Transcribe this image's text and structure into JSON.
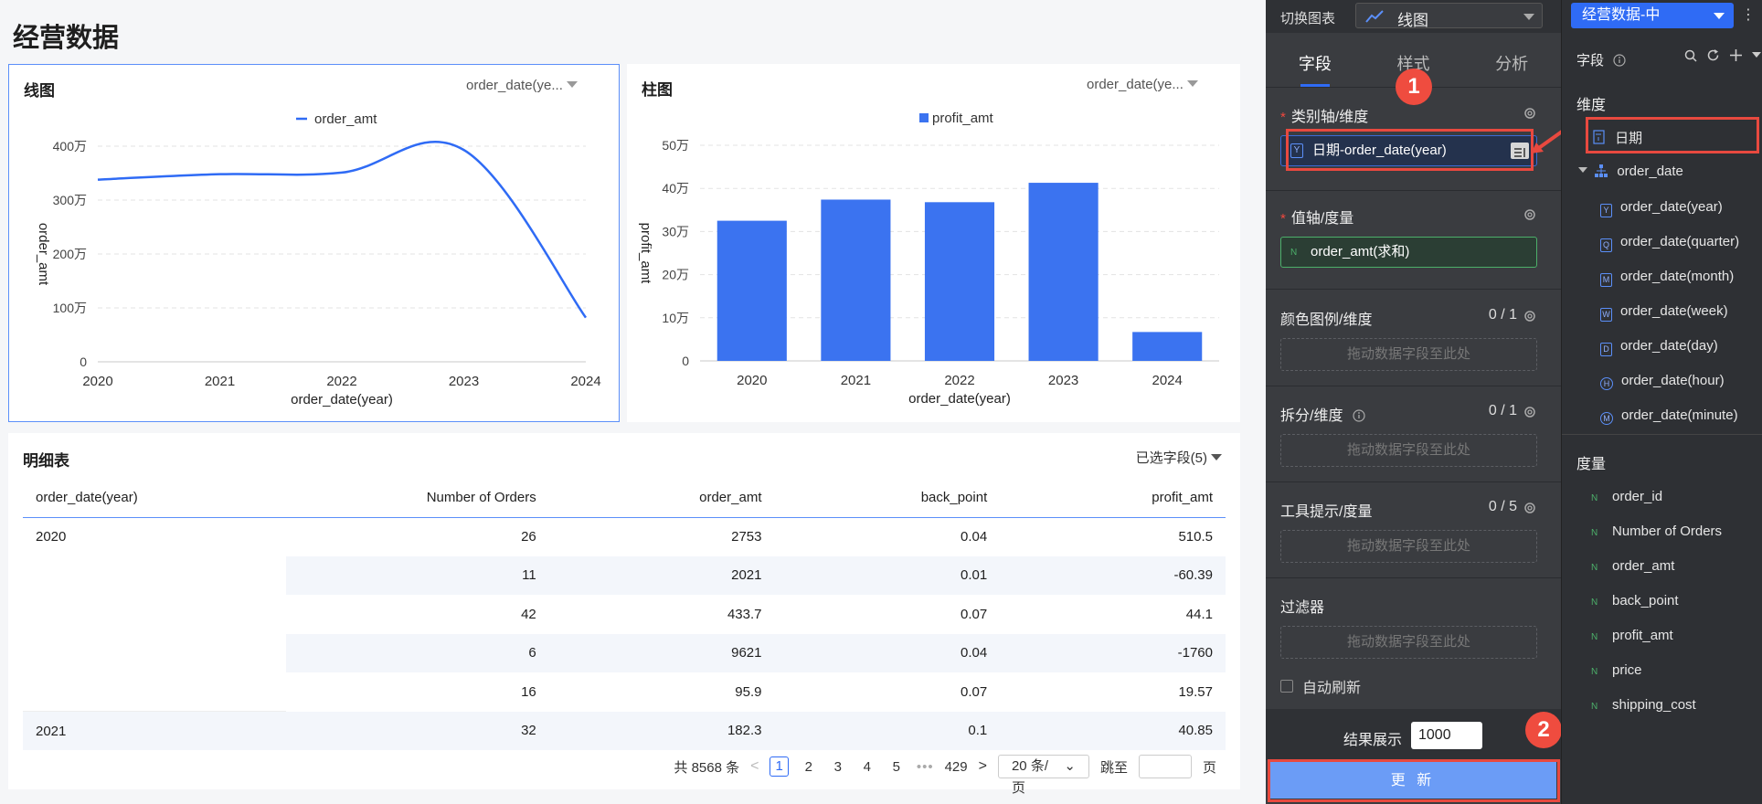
{
  "page": {
    "title": "经营数据"
  },
  "line_card": {
    "title": "线图",
    "field": "order_date(ye...",
    "legend": "order_amt",
    "color": "#2f6bf5"
  },
  "bar_card": {
    "title": "柱图",
    "field": "order_date(ye...",
    "legend": "profit_amt",
    "color": "#3b73f0"
  },
  "chart_data": [
    {
      "type": "line",
      "title": "线图",
      "x": [
        "2020",
        "2021",
        "2022",
        "2023",
        "2024"
      ],
      "series": [
        {
          "name": "order_amt",
          "values": [
            3380000,
            3480000,
            3510000,
            3930000,
            820000
          ]
        }
      ],
      "xlabel": "order_date(year)",
      "ylabel": "order_amt",
      "ylim": [
        0,
        4000000
      ],
      "yticks": [
        0,
        1000000,
        2000000,
        3000000,
        4000000
      ],
      "ytick_labels": [
        "0",
        "100万",
        "200万",
        "300万",
        "400万"
      ],
      "legend": "top-center",
      "grid": true
    },
    {
      "type": "bar",
      "title": "柱图",
      "categories": [
        "2020",
        "2021",
        "2022",
        "2023",
        "2024"
      ],
      "series": [
        {
          "name": "profit_amt",
          "values": [
            325000,
            374000,
            368000,
            413000,
            67000
          ]
        }
      ],
      "xlabel": "order_date(year)",
      "ylabel": "profit_amt",
      "ylim": [
        0,
        500000
      ],
      "yticks": [
        0,
        100000,
        200000,
        300000,
        400000,
        500000
      ],
      "ytick_labels": [
        "0",
        "10万",
        "20万",
        "30万",
        "40万",
        "50万"
      ],
      "legend": "top-center",
      "grid": true
    }
  ],
  "table": {
    "title": "明细表",
    "selected_fields": "已选字段(5)",
    "columns": [
      "order_date(year)",
      "Number of Orders",
      "order_amt",
      "back_point",
      "profit_amt"
    ],
    "rows": [
      [
        "2020",
        "26",
        "2753",
        "0.04",
        "510.5"
      ],
      [
        "",
        "11",
        "2021",
        "0.01",
        "-60.39"
      ],
      [
        "",
        "42",
        "433.7",
        "0.07",
        "44.1"
      ],
      [
        "",
        "6",
        "9621",
        "0.04",
        "-1760"
      ],
      [
        "",
        "16",
        "95.9",
        "0.07",
        "19.57"
      ],
      [
        "2021",
        "32",
        "182.3",
        "0.1",
        "40.85"
      ]
    ],
    "pagination": {
      "total": "共 8568 条",
      "prev": "<",
      "pages": [
        "1",
        "2",
        "3",
        "4",
        "5"
      ],
      "dots": "•••",
      "last": "429",
      "next": ">",
      "page_size": "20 条/页",
      "jump_label": "跳至",
      "page_unit": "页"
    }
  },
  "config": {
    "switch_label": "切换图表",
    "chart_type": "线图",
    "tabs": [
      "字段",
      "样式",
      "分析"
    ],
    "active_tab": "字段",
    "category_axis": {
      "title": "类别轴/维度",
      "required": "*",
      "field_badge": "Y",
      "field": "日期-order_date(year)"
    },
    "value_axis": {
      "title": "值轴/度量",
      "required": "*",
      "field_badge": "N",
      "field": "order_amt(求和)"
    },
    "color_legend": {
      "title": "颜色图例/维度",
      "count": "0 / 1",
      "placeholder": "拖动数据字段至此处"
    },
    "split": {
      "title": "拆分/维度",
      "count": "0 / 1",
      "placeholder": "拖动数据字段至此处"
    },
    "tooltip": {
      "title": "工具提示/度量",
      "count": "0 / 5",
      "placeholder": "拖动数据字段至此处"
    },
    "filter": {
      "title": "过滤器",
      "placeholder": "拖动数据字段至此处"
    },
    "auto_refresh": "自动刷新",
    "result_label": "结果展示",
    "result_value": "1000",
    "update_button": "更 新",
    "step1": "1",
    "step2": "2"
  },
  "dataset": {
    "name": "经营数据-中",
    "more": "⋮",
    "fields_label": "字段",
    "dimension_title": "维度",
    "date_field": "日期",
    "order_date_group": "order_date",
    "date_children": [
      {
        "badge": "Y",
        "label": "order_date(year)",
        "shape": "square"
      },
      {
        "badge": "Q",
        "label": "order_date(quarter)",
        "shape": "square"
      },
      {
        "badge": "M",
        "label": "order_date(month)",
        "shape": "square"
      },
      {
        "badge": "W",
        "label": "order_date(week)",
        "shape": "square"
      },
      {
        "badge": "D",
        "label": "order_date(day)",
        "shape": "square"
      },
      {
        "badge": "H",
        "label": "order_date(hour)",
        "shape": "circle"
      },
      {
        "badge": "M",
        "label": "order_date(minute)",
        "shape": "circle"
      }
    ],
    "measure_title": "度量",
    "measures": [
      "order_id",
      "Number of Orders",
      "order_amt",
      "back_point",
      "profit_amt",
      "price",
      "shipping_cost"
    ],
    "measure_badge": "N"
  }
}
